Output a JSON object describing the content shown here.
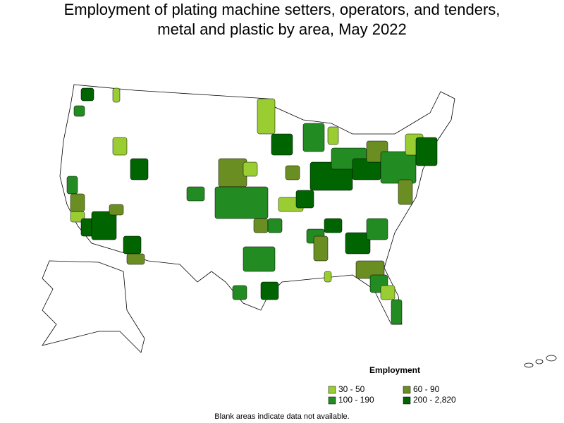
{
  "title": [
    "Employment of plating machine setters, operators, and tenders,",
    "metal and plastic by area, May 2022"
  ],
  "legend": {
    "title": "Employment",
    "items": [
      {
        "label": "30 - 50",
        "color": "#9acd32"
      },
      {
        "label": "60 - 90",
        "color": "#6b8e23"
      },
      {
        "label": "100 - 190",
        "color": "#228b22"
      },
      {
        "label": "200 - 2,820",
        "color": "#006400"
      }
    ]
  },
  "footnote": "Blank areas indicate data not available."
}
